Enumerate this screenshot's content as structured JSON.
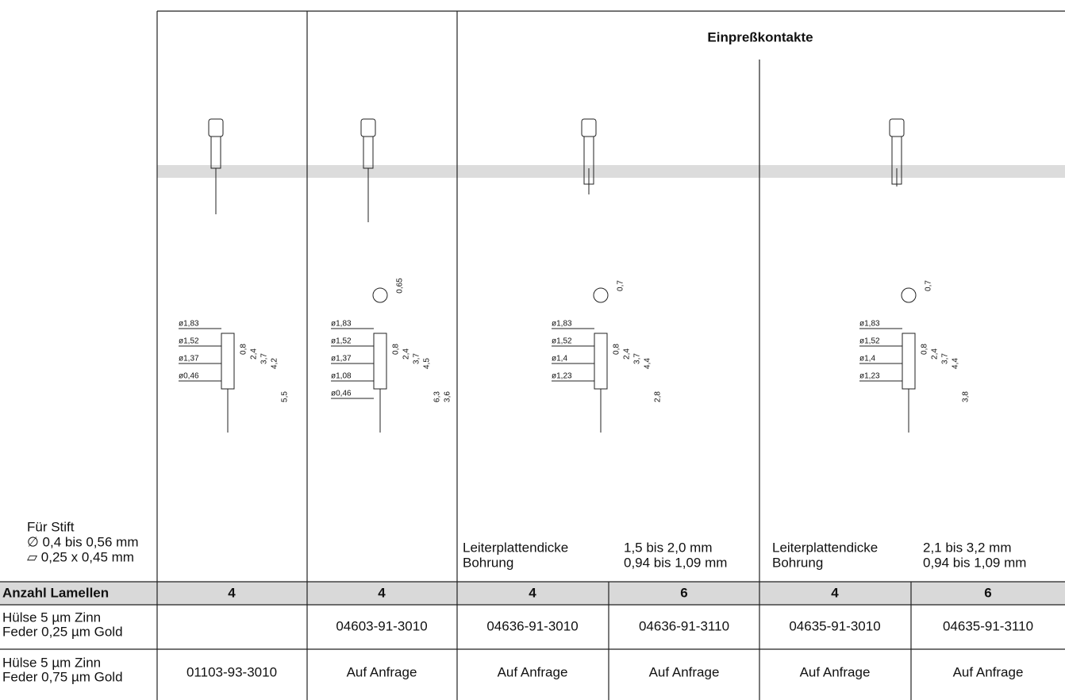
{
  "header": {
    "group_title": "Einpreßkontakte"
  },
  "pin_note": [
    "Für Stift",
    "∅ 0,4 bis 0,56 mm",
    "▱ 0,25 x 0,45 mm"
  ],
  "board_notes": [
    {
      "lines": [
        [
          "Leiterplattendicke",
          "1,5  bis 2,0  mm"
        ],
        [
          "Bohrung",
          "0,94 bis 1,09 mm"
        ]
      ]
    },
    {
      "lines": [
        [
          "Leiterplattendicke",
          "2,1  bis 3,2  mm"
        ],
        [
          "Bohrung",
          "0,94 bis 1,09 mm"
        ]
      ]
    }
  ],
  "drawings": [
    {
      "top_view": null,
      "diameters": [
        "ø1,83",
        "ø1,52",
        "ø1,37",
        "ø0,46"
      ],
      "dimensions": [
        "0,8",
        "2,4",
        "3,7",
        "4,2",
        "5,5"
      ]
    },
    {
      "top_view": "0,65",
      "diameters": [
        "ø1,83",
        "ø1,52",
        "ø1,37",
        "ø1,08",
        "ø0,46"
      ],
      "dimensions": [
        "0,8",
        "2,4",
        "3,7",
        "4,5",
        "6,3",
        "3,6"
      ]
    },
    {
      "top_view": "0,7",
      "diameters": [
        "ø1,83",
        "ø1,52",
        "ø1,4",
        "ø1,23"
      ],
      "dimensions": [
        "0,8",
        "2,4",
        "3,7",
        "4,4",
        "2,8"
      ]
    },
    {
      "top_view": "0,7",
      "diameters": [
        "ø1,83",
        "ø1,52",
        "ø1,4",
        "ø1,23"
      ],
      "dimensions": [
        "0,8",
        "2,4",
        "3,7",
        "4,4",
        "3,8"
      ]
    }
  ],
  "table": {
    "rows": [
      {
        "label": [
          "Anzahl Lamellen"
        ],
        "cells": [
          "4",
          "4",
          "4",
          "6",
          "4",
          "6"
        ]
      },
      {
        "label": [
          "Hülse 5 µm Zinn",
          "Feder 0,25 µm Gold"
        ],
        "cells": [
          null,
          "04603-91-3010",
          "04636-91-3010",
          "04636-91-3110",
          "04635-91-3010",
          "04635-91-3110"
        ]
      },
      {
        "label": [
          "Hülse 5 µm Zinn",
          "Feder 0,75 µm Gold"
        ],
        "cells": [
          "01103-93-3010",
          "Auf Anfrage",
          "Auf Anfrage",
          "Auf Anfrage",
          "Auf Anfrage",
          "Auf Anfrage"
        ]
      }
    ]
  }
}
